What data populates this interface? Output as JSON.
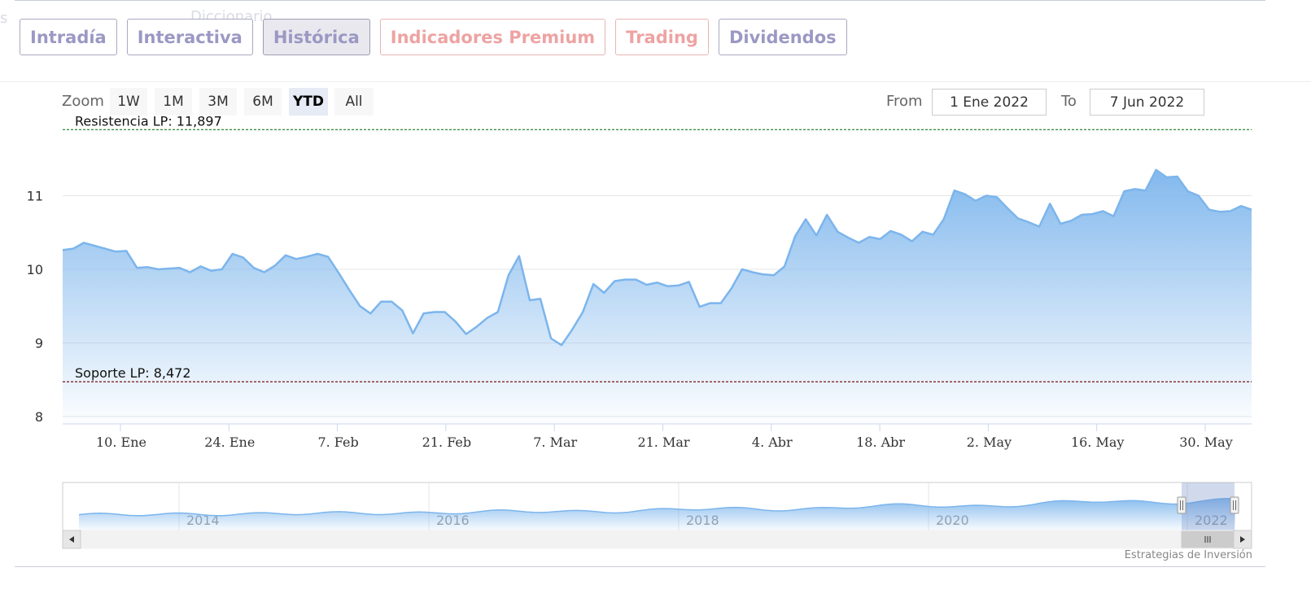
{
  "ghost_texts": {
    "left": "s",
    "center": "Diccionario"
  },
  "tabs": [
    {
      "label": "Intradía",
      "active": false,
      "premium": false
    },
    {
      "label": "Interactiva",
      "active": false,
      "premium": false
    },
    {
      "label": "Histórica",
      "active": true,
      "premium": false
    },
    {
      "label": "Indicadores Premium",
      "active": false,
      "premium": true
    },
    {
      "label": "Trading",
      "active": false,
      "premium": true
    },
    {
      "label": "Dividendos",
      "active": false,
      "premium": false
    }
  ],
  "range_selector": {
    "zoom_label": "Zoom",
    "buttons": [
      "1W",
      "1M",
      "3M",
      "6M",
      "YTD",
      "All"
    ],
    "selected": "YTD",
    "from_label": "From",
    "from_value": "1 Ene 2022",
    "to_label": "To",
    "to_value": "7 Jun 2022"
  },
  "chart_data": {
    "type": "area",
    "ylim": [
      7.9,
      12.0
    ],
    "y_ticks": [
      "8",
      "9",
      "10",
      "11"
    ],
    "x_ticks": [
      "10. Ene",
      "24. Ene",
      "7. Feb",
      "21. Feb",
      "7. Mar",
      "21. Mar",
      "4. Abr",
      "18. Abr",
      "2. May",
      "16. May",
      "30. May"
    ],
    "series": [
      {
        "values": [
          10.26,
          10.28,
          10.36,
          10.32,
          10.28,
          10.24,
          10.25,
          10.02,
          10.03,
          10.0,
          10.01,
          10.02,
          9.96,
          10.04,
          9.98,
          10.0,
          10.21,
          10.16,
          10.02,
          9.96,
          10.05,
          10.19,
          10.14,
          10.17,
          10.21,
          10.17,
          9.95,
          9.72,
          9.5,
          9.4,
          9.56,
          9.56,
          9.44,
          9.13,
          9.4,
          9.42,
          9.42,
          9.29,
          9.12,
          9.22,
          9.34,
          9.42,
          9.92,
          10.18,
          9.58,
          9.6,
          9.06,
          8.97,
          9.18,
          9.42,
          9.8,
          9.68,
          9.84,
          9.86,
          9.86,
          9.79,
          9.82,
          9.77,
          9.78,
          9.83,
          9.49,
          9.54,
          9.54,
          9.74,
          10.0,
          9.96,
          9.93,
          9.92,
          10.04,
          10.45,
          10.68,
          10.46,
          10.74,
          10.51,
          10.43,
          10.36,
          10.44,
          10.41,
          10.52,
          10.47,
          10.38,
          10.51,
          10.47,
          10.68,
          11.07,
          11.02,
          10.93,
          11.0,
          10.98,
          10.83,
          10.69,
          10.64,
          10.58,
          10.89,
          10.62,
          10.66,
          10.74,
          10.75,
          10.79,
          10.72,
          11.06,
          11.09,
          11.07,
          11.35,
          11.25,
          11.26,
          11.06,
          11.0,
          10.81,
          10.78,
          10.79,
          10.86,
          10.81
        ]
      }
    ],
    "plot_lines": [
      {
        "label": "Resistencia LP: 11,897",
        "value": 11.897,
        "color": "#1a7a1a"
      },
      {
        "label": "Soporte LP: 8,472",
        "value": 8.472,
        "color": "#7a1010"
      }
    ],
    "grid": true,
    "navigator": {
      "x_ticks": [
        "2014",
        "2016",
        "2018",
        "2020",
        "2022"
      ]
    }
  },
  "colors": {
    "series_line": "#7cb5ec",
    "area_top": "#7cb5ec",
    "active_tab_bg": "#e8e8ee",
    "tab_text": "#9b98c4",
    "premium_text": "#eea3a3"
  },
  "credit": "Estrategias de Inversión"
}
